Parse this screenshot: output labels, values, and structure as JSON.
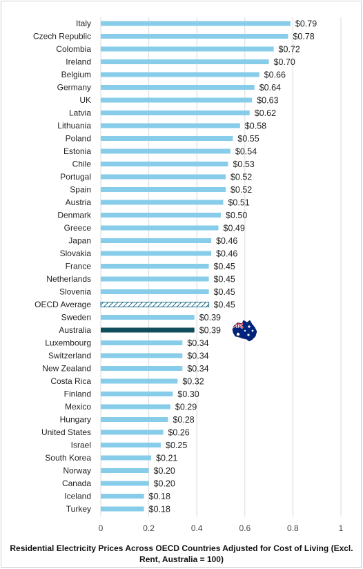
{
  "chart_data": {
    "type": "bar",
    "orientation": "horizontal",
    "xlabel": "Residential Electricity Prices Across OECD Countries Adjusted for Cost of Living (Excl. Rent, Australia = 100)",
    "xlim": [
      0,
      1
    ],
    "xticks": [
      "0",
      "0.2",
      "0.4",
      "0.6",
      "0.8",
      "1"
    ],
    "grid": true,
    "colors": {
      "default": "#87cdea",
      "oecd_average_hatch": "#1f6f8b",
      "australia": "#0f4c5c"
    },
    "categories": [
      "Italy",
      "Czech Republic",
      "Colombia",
      "Ireland",
      "Belgium",
      "Germany",
      "UK",
      "Latvia",
      "Lithuania",
      "Poland",
      "Estonia",
      "Chile",
      "Portugal",
      "Spain",
      "Austria",
      "Denmark",
      "Greece",
      "Japan",
      "Slovakia",
      "France",
      "Netherlands",
      "Slovenia",
      "OECD Average",
      "Sweden",
      "Australia",
      "Luxembourg",
      "Switzerland",
      "New Zealand",
      "Costa Rica",
      "Finland",
      "Mexico",
      "Hungary",
      "United States",
      "Israel",
      "South Korea",
      "Norway",
      "Canada",
      "Iceland",
      "Turkey"
    ],
    "values": [
      0.79,
      0.78,
      0.72,
      0.7,
      0.66,
      0.64,
      0.63,
      0.62,
      0.58,
      0.55,
      0.54,
      0.53,
      0.52,
      0.52,
      0.51,
      0.5,
      0.49,
      0.46,
      0.46,
      0.45,
      0.45,
      0.45,
      0.45,
      0.39,
      0.39,
      0.34,
      0.34,
      0.34,
      0.32,
      0.3,
      0.29,
      0.28,
      0.26,
      0.25,
      0.21,
      0.2,
      0.2,
      0.18,
      0.18
    ],
    "data_labels": [
      "$0.79",
      "$0.78",
      "$0.72",
      "$0.70",
      "$0.66",
      "$0.64",
      "$0.63",
      "$0.62",
      "$0.58",
      "$0.55",
      "$0.54",
      "$0.53",
      "$0.52",
      "$0.52",
      "$0.51",
      "$0.50",
      "$0.49",
      "$0.46",
      "$0.46",
      "$0.45",
      "$0.45",
      "$0.45",
      "$0.45",
      "$0.39",
      "$0.39",
      "$0.34",
      "$0.34",
      "$0.34",
      "$0.32",
      "$0.30",
      "$0.29",
      "$0.28",
      "$0.26",
      "$0.25",
      "$0.21",
      "$0.20",
      "$0.20",
      "$0.18",
      "$0.18"
    ],
    "annotations": [
      {
        "category": "Australia",
        "icon": "australian-flag-icon"
      }
    ]
  }
}
